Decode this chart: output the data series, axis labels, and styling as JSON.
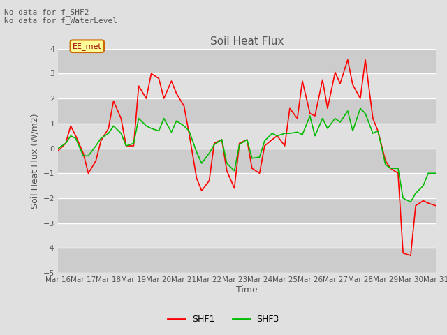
{
  "title": "Soil Heat Flux",
  "xlabel": "Time",
  "ylabel": "Soil Heat Flux (W/m2)",
  "ylim": [
    -5.0,
    4.0
  ],
  "yticks": [
    -5.0,
    -4.0,
    -3.0,
    -2.0,
    -1.0,
    0.0,
    1.0,
    2.0,
    3.0,
    4.0
  ],
  "background_color": "#e0e0e0",
  "annotation_text": "No data for f_SHF2\nNo data for f_WaterLevel",
  "ee_met_label": "EE_met",
  "legend_entries": [
    "SHF1",
    "SHF3"
  ],
  "line_colors": [
    "#ff0000",
    "#00bb00"
  ],
  "x_tick_labels": [
    "Mar 16",
    "Mar 17",
    "Mar 18",
    "Mar 19",
    "Mar 20",
    "Mar 21",
    "Mar 22",
    "Mar 23",
    "Mar 24",
    "Mar 25",
    "Mar 26",
    "Mar 27",
    "Mar 28",
    "Mar 29",
    "Mar 30",
    "Mar 31"
  ],
  "shf1_x": [
    0,
    0.3,
    0.5,
    0.7,
    1.0,
    1.2,
    1.5,
    1.7,
    2.0,
    2.2,
    2.5,
    2.7,
    3.0,
    3.2,
    3.5,
    3.7,
    4.0,
    4.2,
    4.5,
    4.7,
    5.0,
    5.2,
    5.5,
    5.7,
    6.0,
    6.2,
    6.5,
    6.7,
    7.0,
    7.2,
    7.5,
    7.7,
    8.0,
    8.2,
    8.5,
    8.7,
    9.0,
    9.2,
    9.5,
    9.7,
    10.0,
    10.2,
    10.5,
    10.7,
    11.0,
    11.2,
    11.5,
    11.7,
    12.0,
    12.2,
    12.5,
    12.7,
    13.0,
    13.2,
    13.5,
    13.7,
    14.0,
    14.2,
    14.5,
    14.7,
    15.0
  ],
  "shf1_y": [
    -0.1,
    0.2,
    0.9,
    0.5,
    -0.2,
    -1.0,
    -0.5,
    0.3,
    0.8,
    1.9,
    1.2,
    0.1,
    0.1,
    2.5,
    2.0,
    3.0,
    2.8,
    2.0,
    2.7,
    2.2,
    1.7,
    0.6,
    -1.2,
    -1.7,
    -1.3,
    0.2,
    0.35,
    -0.9,
    -1.6,
    0.2,
    0.35,
    -0.8,
    -1.0,
    0.1,
    0.35,
    0.5,
    0.1,
    1.6,
    1.2,
    2.7,
    1.4,
    1.3,
    2.75,
    1.6,
    3.05,
    2.6,
    3.55,
    2.55,
    2.0,
    3.55,
    1.2,
    0.7,
    -0.5,
    -0.8,
    -1.0,
    -4.2,
    -4.3,
    -2.3,
    -2.1,
    -2.2,
    -2.3
  ],
  "shf3_x": [
    0,
    0.3,
    0.5,
    0.7,
    1.0,
    1.2,
    1.5,
    1.7,
    2.0,
    2.2,
    2.5,
    2.7,
    3.0,
    3.2,
    3.5,
    3.7,
    4.0,
    4.2,
    4.5,
    4.7,
    5.0,
    5.2,
    5.5,
    5.7,
    6.0,
    6.2,
    6.5,
    6.7,
    7.0,
    7.2,
    7.5,
    7.7,
    8.0,
    8.2,
    8.5,
    8.7,
    9.0,
    9.2,
    9.5,
    9.7,
    10.0,
    10.2,
    10.5,
    10.7,
    11.0,
    11.2,
    11.5,
    11.7,
    12.0,
    12.2,
    12.5,
    12.7,
    13.0,
    13.2,
    13.5,
    13.7,
    14.0,
    14.2,
    14.5,
    14.7,
    15.0
  ],
  "shf3_y": [
    0.0,
    0.2,
    0.5,
    0.4,
    -0.3,
    -0.3,
    0.1,
    0.4,
    0.6,
    0.9,
    0.6,
    0.1,
    0.2,
    1.2,
    0.9,
    0.8,
    0.7,
    1.2,
    0.65,
    1.1,
    0.9,
    0.7,
    -0.15,
    -0.6,
    -0.2,
    0.15,
    0.35,
    -0.6,
    -0.9,
    0.15,
    0.35,
    -0.4,
    -0.35,
    0.3,
    0.6,
    0.5,
    0.6,
    0.6,
    0.65,
    0.55,
    1.3,
    0.5,
    1.2,
    0.8,
    1.2,
    1.05,
    1.5,
    0.7,
    1.6,
    1.4,
    0.6,
    0.7,
    -0.65,
    -0.8,
    -0.8,
    -2.0,
    -2.15,
    -1.8,
    -1.5,
    -1.0,
    -1.0
  ]
}
